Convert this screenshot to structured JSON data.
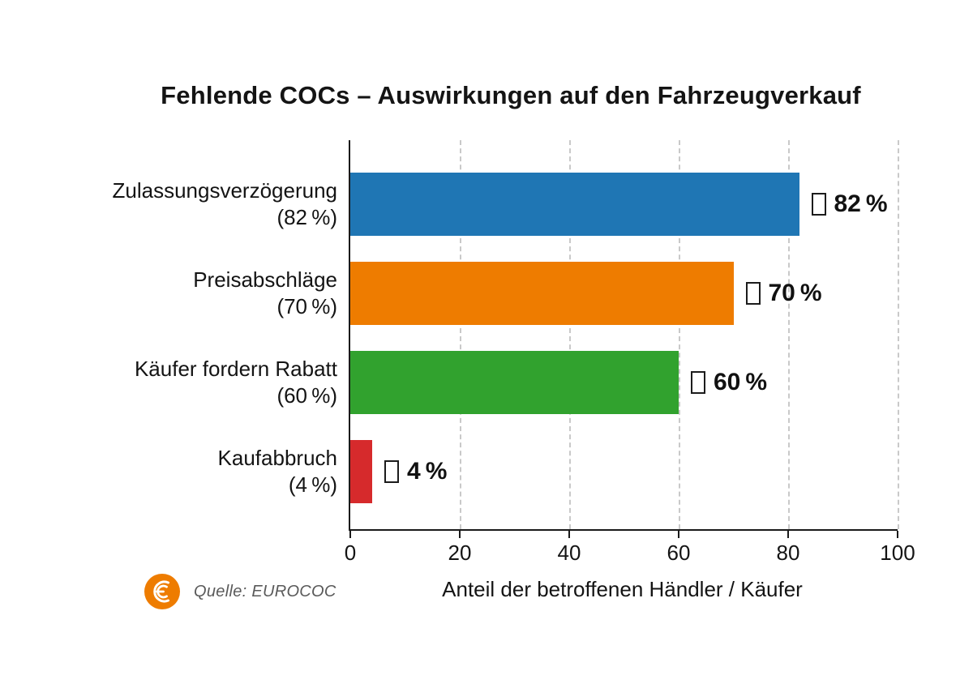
{
  "title": "Fehlende COCs – Auswirkungen auf den Fahrzeugverkauf",
  "chart_data": {
    "type": "bar",
    "orientation": "horizontal",
    "title": "Fehlende COCs – Auswirkungen auf den Fahrzeugverkauf",
    "categories": [
      "Zulassungsverzögerung",
      "Preisabschläge",
      "Käufer fordern Rabatt",
      "Kaufabbruch"
    ],
    "values": [
      82,
      70,
      60,
      4
    ],
    "bar_colors": [
      "#1f76b4",
      "#ee7c00",
      "#31a22e",
      "#d62a2c"
    ],
    "value_labels": [
      "82 %",
      "70 %",
      "60 %",
      "4 %"
    ],
    "value_label_prefix_glyph": "missing-glyph-box",
    "xlabel": "Anteil der betroffenen Händler / Käufer",
    "ylabel": "",
    "xlim": [
      0,
      100
    ],
    "xticks": [
      0,
      20,
      40,
      60,
      80,
      100
    ],
    "grid": "vertical-dashed",
    "legend": "none"
  },
  "rows": [
    {
      "label": "Zulassungsverzögerung",
      "sub": "(82 %)",
      "value_label": "82 %"
    },
    {
      "label": "Preisabschläge",
      "sub": "(70 %)",
      "value_label": "70 %"
    },
    {
      "label": "Käufer fordern Rabatt",
      "sub": "(60 %)",
      "value_label": "60 %"
    },
    {
      "label": "Kaufabbruch",
      "sub": "(4 %)",
      "value_label": "4 %"
    }
  ],
  "source": {
    "text": "Quelle: EUROCOC",
    "logo": "eurococ-logo",
    "logo_color": "#ee7c00"
  }
}
